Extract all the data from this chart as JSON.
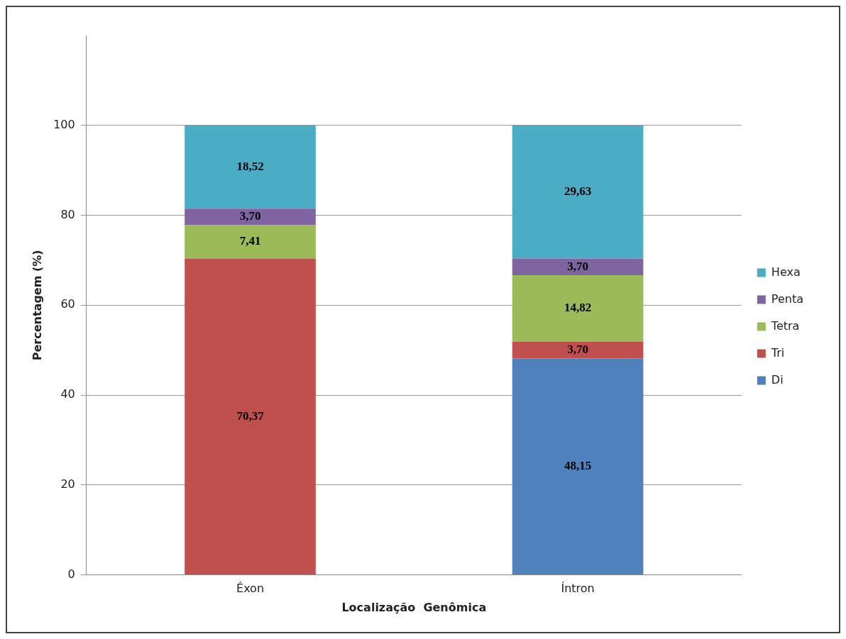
{
  "chart_data": {
    "type": "bar",
    "xlabel": "Localização  Genômica",
    "ylabel": "Percentagem (%)",
    "categories": [
      "Éxon",
      "Íntron"
    ],
    "stacked": true,
    "series": [
      {
        "name": "Di",
        "color": "#4f81bd",
        "values": [
          0,
          48.15
        ],
        "value_labels": [
          null,
          "48,15"
        ]
      },
      {
        "name": "Tri",
        "color": "#c0504d",
        "values": [
          70.37,
          3.7
        ],
        "value_labels": [
          "70,37",
          "3,70"
        ]
      },
      {
        "name": "Tetra",
        "color": "#9bbb59",
        "values": [
          7.41,
          14.82
        ],
        "value_labels": [
          "7,41",
          "14,82"
        ]
      },
      {
        "name": "Penta",
        "color": "#8064a2",
        "values": [
          3.7,
          3.7
        ],
        "value_labels": [
          "3,70",
          "3,70"
        ]
      },
      {
        "name": "Hexa",
        "color": "#4bacc6",
        "values": [
          18.52,
          29.63
        ],
        "value_labels": [
          "18,52",
          "29,63"
        ]
      }
    ],
    "ylim": [
      0,
      120
    ],
    "yticks": [
      0,
      20,
      40,
      60,
      80,
      100
    ],
    "grid": "y",
    "legend": "right"
  }
}
